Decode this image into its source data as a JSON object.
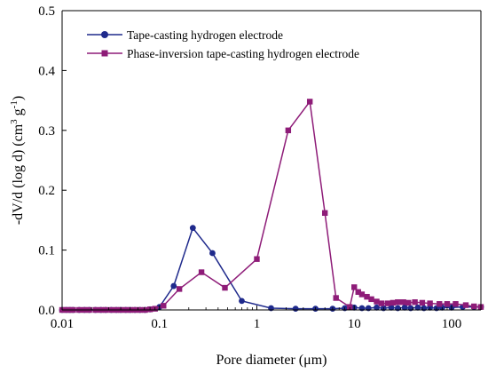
{
  "chart_data": {
    "type": "line",
    "xscale": "log",
    "xlim": [
      0.01,
      200
    ],
    "ylim": [
      0,
      0.5
    ],
    "xlabel_parts": {
      "main": "Pore diameter (",
      "mu": "μ",
      "unit": "m)"
    },
    "ylabel_parts": {
      "main": "-dV/d (log d) (cm",
      "sup1": "3",
      "mid": " g",
      "sup2": "-1",
      "end": ")"
    },
    "x_ticks": [
      {
        "value": 0.01,
        "label": "0.01"
      },
      {
        "value": 0.1,
        "label": "0.1"
      },
      {
        "value": 1,
        "label": "1"
      },
      {
        "value": 10,
        "label": "10"
      },
      {
        "value": 100,
        "label": "100"
      }
    ],
    "y_ticks": [
      {
        "value": 0.0,
        "label": "0.0"
      },
      {
        "value": 0.1,
        "label": "0.1"
      },
      {
        "value": 0.2,
        "label": "0.2"
      },
      {
        "value": 0.3,
        "label": "0.3"
      },
      {
        "value": 0.4,
        "label": "0.4"
      },
      {
        "value": 0.5,
        "label": "0.5"
      }
    ],
    "legend_position": "top-left",
    "series": [
      {
        "name": "Tape-casting hydrogen electrode",
        "color": "#1f2a8c",
        "marker": "circle",
        "x": [
          0.01,
          0.011,
          0.012,
          0.013,
          0.015,
          0.017,
          0.019,
          0.022,
          0.025,
          0.028,
          0.032,
          0.036,
          0.04,
          0.045,
          0.05,
          0.056,
          0.063,
          0.071,
          0.08,
          0.1,
          0.14,
          0.22,
          0.35,
          0.7,
          1.4,
          2.5,
          4,
          6,
          8,
          10,
          12,
          14,
          17,
          20,
          24,
          28,
          33,
          38,
          45,
          52,
          60,
          70,
          80,
          100,
          130,
          170,
          200
        ],
        "y": [
          0.0,
          0.0,
          0.0,
          0.0,
          0.0,
          0.0,
          0.0,
          0.0,
          0.0,
          0.0,
          0.0,
          0.0,
          0.0,
          0.0,
          0.0,
          0.0,
          0.0,
          0.0,
          0.001,
          0.005,
          0.04,
          0.137,
          0.095,
          0.015,
          0.003,
          0.002,
          0.002,
          0.002,
          0.003,
          0.004,
          0.003,
          0.003,
          0.004,
          0.003,
          0.004,
          0.003,
          0.004,
          0.003,
          0.004,
          0.003,
          0.004,
          0.003,
          0.004,
          0.004,
          0.005,
          0.005,
          0.005
        ]
      },
      {
        "name": "Phase-inversion tape-casting hydrogen electrode",
        "color": "#8e1c78",
        "marker": "square",
        "x": [
          0.01,
          0.011,
          0.012,
          0.013,
          0.015,
          0.017,
          0.019,
          0.022,
          0.025,
          0.028,
          0.032,
          0.036,
          0.04,
          0.045,
          0.05,
          0.056,
          0.063,
          0.071,
          0.08,
          0.09,
          0.11,
          0.16,
          0.27,
          0.47,
          1.0,
          2.1,
          3.5,
          5.0,
          6.5,
          9.0,
          10,
          11,
          12,
          13.5,
          15,
          17,
          19,
          22,
          25,
          28,
          32,
          36,
          42,
          50,
          60,
          75,
          90,
          110,
          140,
          170,
          200
        ],
        "y": [
          0.0,
          0.0,
          0.0,
          0.0,
          0.0,
          0.0,
          0.0,
          0.0,
          0.0,
          0.0,
          0.0,
          0.0,
          0.0,
          0.0,
          0.0,
          0.0,
          0.0,
          0.0,
          0.001,
          0.002,
          0.007,
          0.035,
          0.063,
          0.037,
          0.085,
          0.3,
          0.348,
          0.162,
          0.02,
          0.005,
          0.038,
          0.03,
          0.026,
          0.022,
          0.018,
          0.014,
          0.011,
          0.011,
          0.012,
          0.013,
          0.013,
          0.012,
          0.013,
          0.012,
          0.011,
          0.01,
          0.01,
          0.01,
          0.008,
          0.006,
          0.005
        ]
      }
    ]
  }
}
